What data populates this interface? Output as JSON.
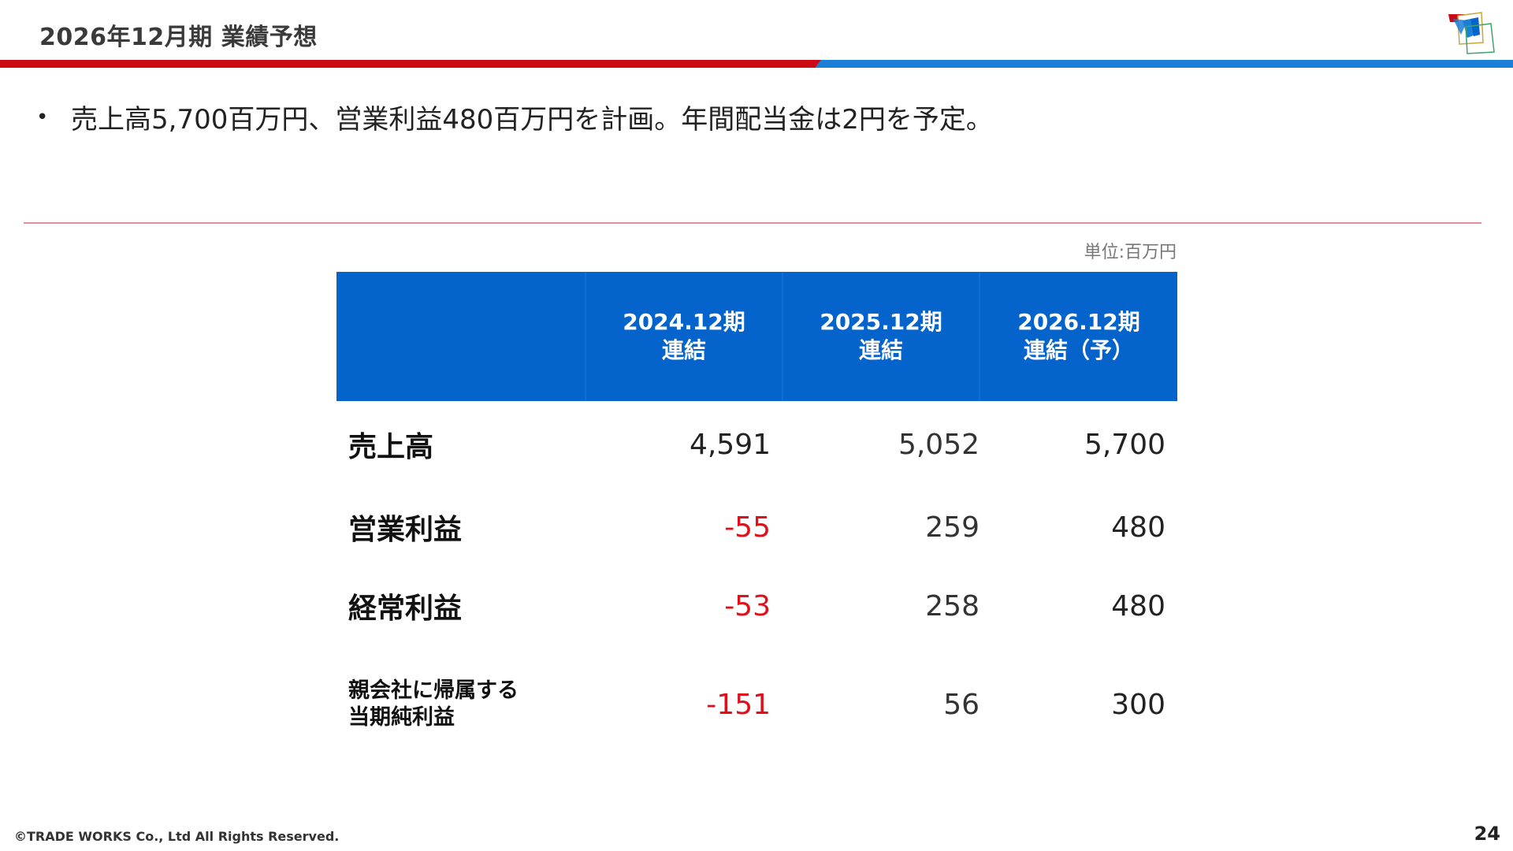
{
  "header": {
    "title": "2026年12月期 業績予想"
  },
  "bullet": {
    "symbol": "•",
    "text": "売上高5,700百万円、営業利益480百万円を計画。年間配当金は2円を予定。"
  },
  "table": {
    "unit_label": "単位:百万円",
    "columns": [
      {
        "line1": "2024.12期",
        "line2": "連結"
      },
      {
        "line1": "2025.12期",
        "line2": "連結"
      },
      {
        "line1": "2026.12期",
        "line2": "連結（予）"
      }
    ],
    "rows": [
      {
        "label_line1": "売上高",
        "label_line2": "",
        "values": [
          "4,591",
          "5,052",
          "5,700"
        ]
      },
      {
        "label_line1": "営業利益",
        "label_line2": "",
        "values": [
          "-55",
          "259",
          "480"
        ]
      },
      {
        "label_line1": "経常利益",
        "label_line2": "",
        "values": [
          "-53",
          "258",
          "480"
        ]
      },
      {
        "label_line1": "親会社に帰属する",
        "label_line2": "当期純利益",
        "values": [
          "-151",
          "56",
          "300"
        ]
      }
    ],
    "negative_color": "#e0101a",
    "header_color": "#0564cc"
  },
  "footer": {
    "copyright": "©TRADE WORKS Co., Ltd All Rights Reserved.",
    "page_number": "24"
  },
  "brand": {
    "red": "#cc0a14",
    "blue": "#1a7fd6",
    "logo_icon": "trade-works-logo-icon"
  }
}
